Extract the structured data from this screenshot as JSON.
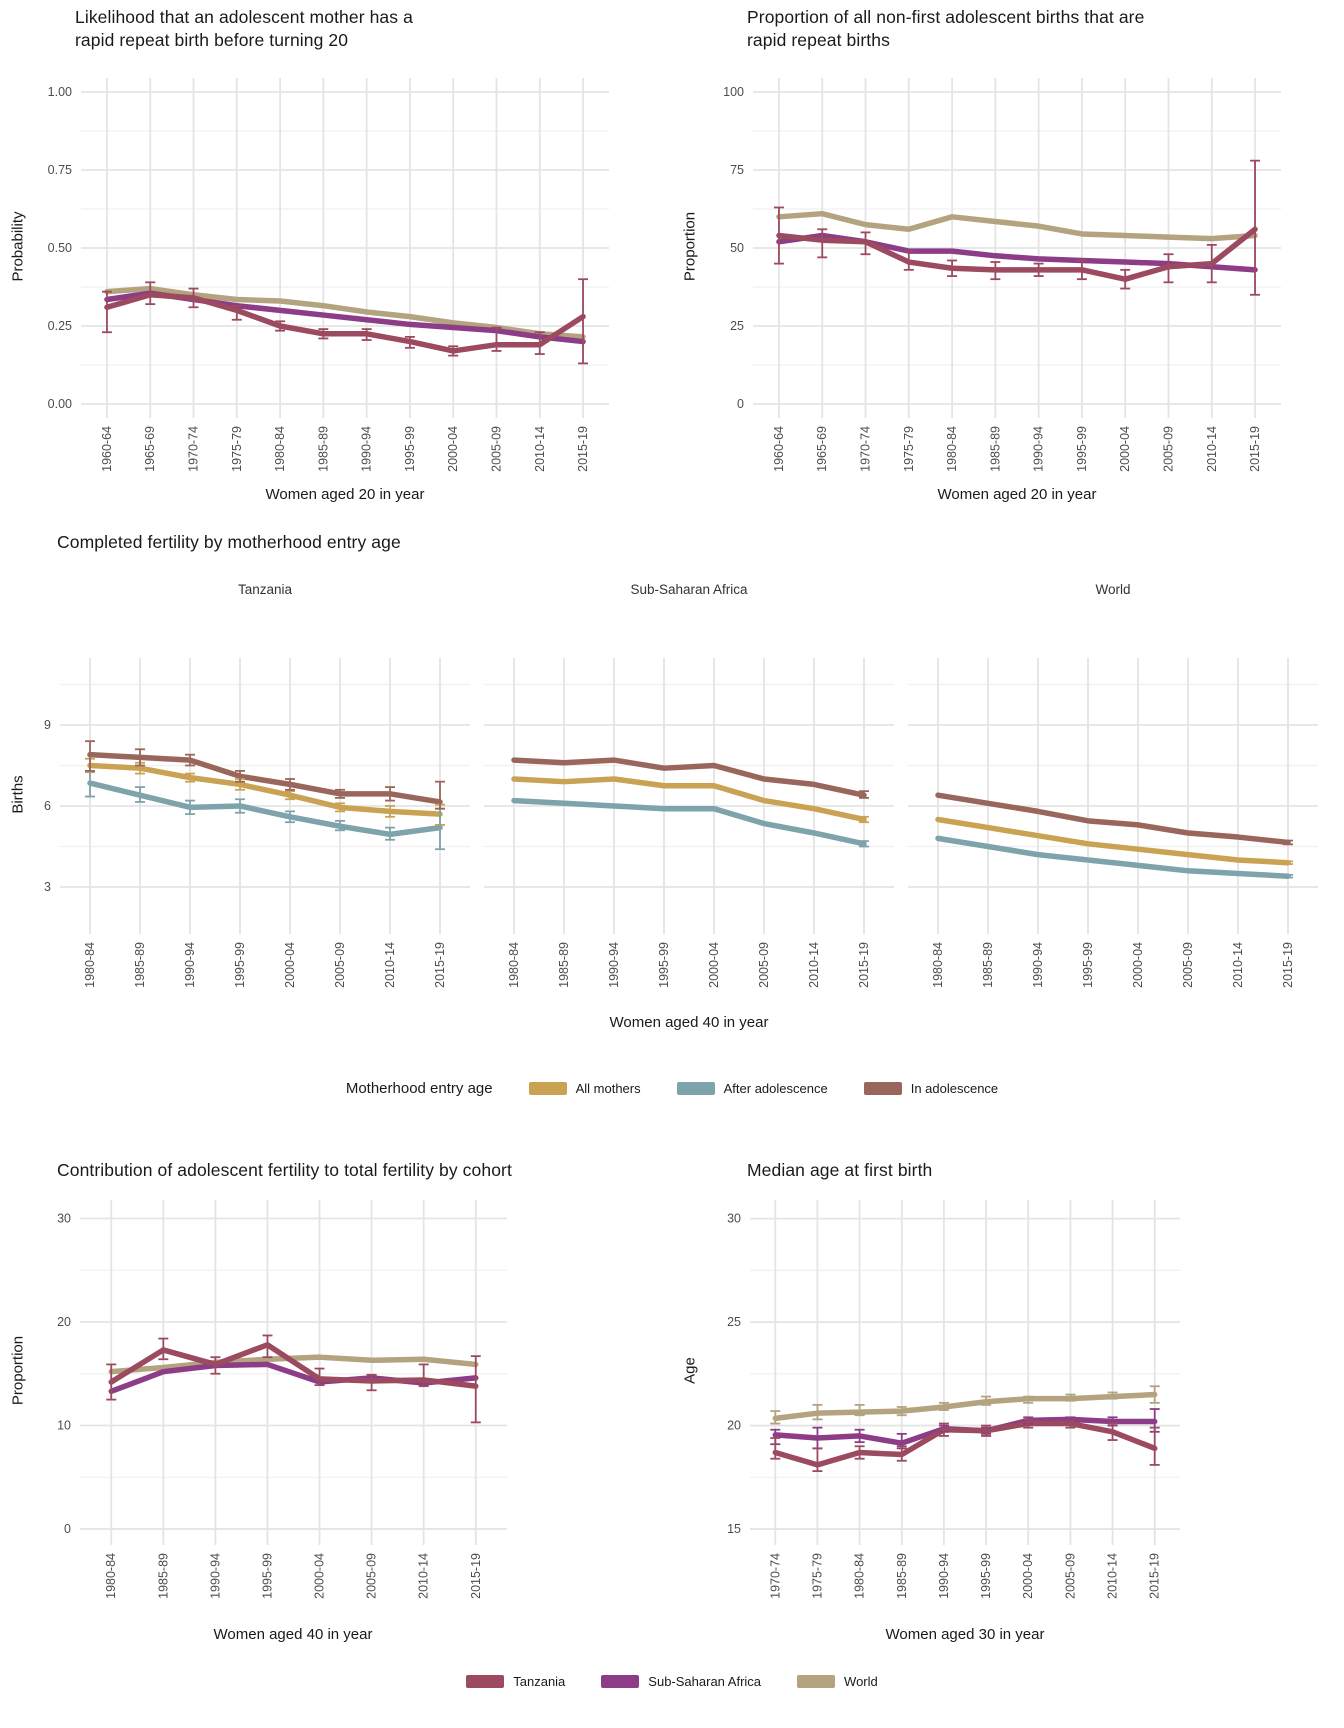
{
  "styles": {
    "background": "#ffffff",
    "grid_major": "#e4e4e4",
    "grid_minor": "#f0f0f0",
    "title_color": "#1a1a1a",
    "tick_label_color": "#4d4d4d",
    "strip_color": "#333333"
  },
  "palette": {
    "tanzania": "#9c4a5f",
    "sub_saharan_africa": "#8d3c87",
    "world": "#b3a37e",
    "all_mothers": "#c9a353",
    "after_adolescence": "#7fa3ab",
    "in_adolescence": "#99665c"
  },
  "legends": {
    "motherhood_entry_age": {
      "title": "Motherhood entry age",
      "items": [
        {
          "label": "All mothers",
          "color": "all_mothers"
        },
        {
          "label": "After adolescence",
          "color": "after_adolescence"
        },
        {
          "label": "In adolescence",
          "color": "in_adolescence"
        }
      ]
    },
    "regions": {
      "title": "",
      "items": [
        {
          "label": "Tanzania",
          "color": "tanzania"
        },
        {
          "label": "Sub-Saharan Africa",
          "color": "sub_saharan_africa"
        },
        {
          "label": "World",
          "color": "world"
        }
      ]
    }
  },
  "chart_data": [
    {
      "id": "rrb-likelihood",
      "type": "line",
      "title": "Likelihood that an adolescent mother has a\nrapid repeat birth before turning 20",
      "xlabel": "Women aged 20 in year",
      "ylabel": "Probability",
      "ylim": [
        -0.045,
        1.045
      ],
      "ytick_values": [
        0,
        0.25,
        0.5,
        0.75,
        1.0
      ],
      "ytick_labels": [
        "0.00",
        "0.25",
        "0.50",
        "0.75",
        "1.00"
      ],
      "yminor": [
        0.125,
        0.375,
        0.625,
        0.875
      ],
      "legend_position": "none",
      "grid": true,
      "categories": [
        "1960-64",
        "1965-69",
        "1970-74",
        "1975-79",
        "1980-84",
        "1985-89",
        "1990-94",
        "1995-99",
        "2000-04",
        "2005-09",
        "2010-14",
        "2015-19"
      ],
      "series": [
        {
          "name": "World",
          "color": "world",
          "values": [
            0.36,
            0.37,
            0.35,
            0.335,
            0.33,
            0.315,
            0.295,
            0.28,
            0.26,
            0.245,
            0.225,
            0.215
          ]
        },
        {
          "name": "Sub-Saharan Africa",
          "color": "sub_saharan_africa",
          "values": [
            0.335,
            0.355,
            0.335,
            0.315,
            0.3,
            0.285,
            0.27,
            0.255,
            0.245,
            0.235,
            0.215,
            0.2
          ]
        },
        {
          "name": "Tanzania",
          "color": "tanzania",
          "values": [
            0.31,
            0.35,
            0.34,
            0.3,
            0.25,
            0.225,
            0.225,
            0.2,
            0.17,
            0.19,
            0.19,
            0.28
          ],
          "err_low": [
            0.23,
            0.32,
            0.31,
            0.27,
            0.235,
            0.21,
            0.205,
            0.18,
            0.155,
            0.17,
            0.16,
            0.13
          ],
          "err_high": [
            0.36,
            0.39,
            0.37,
            0.315,
            0.265,
            0.24,
            0.24,
            0.215,
            0.185,
            0.245,
            0.23,
            0.4
          ]
        }
      ]
    },
    {
      "id": "rrb-proportion",
      "type": "line",
      "title": "Proportion of all non-first adolescent births that are\nrapid repeat births",
      "xlabel": "Women aged 20 in year",
      "ylabel": "Proportion",
      "ylim": [
        -4.5,
        104.5
      ],
      "ytick_values": [
        0,
        25,
        50,
        75,
        100
      ],
      "ytick_labels": [
        "0",
        "25",
        "50",
        "75",
        "100"
      ],
      "yminor": [
        12.5,
        37.5,
        62.5,
        87.5
      ],
      "legend_position": "none",
      "grid": true,
      "categories": [
        "1960-64",
        "1965-69",
        "1970-74",
        "1975-79",
        "1980-84",
        "1985-89",
        "1990-94",
        "1995-99",
        "2000-04",
        "2005-09",
        "2010-14",
        "2015-19"
      ],
      "series": [
        {
          "name": "World",
          "color": "world",
          "values": [
            60,
            61,
            57.5,
            56,
            60,
            58.5,
            57,
            54.5,
            54,
            53.5,
            53,
            54
          ]
        },
        {
          "name": "Sub-Saharan Africa",
          "color": "sub_saharan_africa",
          "values": [
            52,
            54,
            52,
            49,
            49,
            47.5,
            46.5,
            46,
            45.5,
            45,
            44,
            43
          ]
        },
        {
          "name": "Tanzania",
          "color": "tanzania",
          "values": [
            54,
            52.5,
            52,
            45.5,
            43.5,
            43,
            43,
            43,
            40,
            44,
            45,
            56
          ],
          "err_low": [
            45,
            47,
            48,
            43,
            41,
            40,
            41,
            40,
            37,
            39,
            39,
            35
          ],
          "err_high": [
            63,
            56,
            55,
            49,
            46,
            45.5,
            45,
            46,
            43,
            48,
            51,
            78
          ]
        }
      ]
    },
    {
      "id": "completed-fertility",
      "type": "line",
      "title": "Completed fertility by motherhood entry age",
      "xlabel": "Women aged 40 in year",
      "ylabel": "Births",
      "ylim": [
        1.26,
        11.48
      ],
      "ytick_values": [
        3,
        6,
        9
      ],
      "ytick_labels": [
        "3",
        "6",
        "9"
      ],
      "yminor": [
        4.5,
        7.5,
        10.5
      ],
      "legend_position": "bottom",
      "grid": true,
      "categories": [
        "1980-84",
        "1985-89",
        "1990-94",
        "1995-99",
        "2000-04",
        "2005-09",
        "2010-14",
        "2015-19"
      ],
      "facets": [
        {
          "label": "Tanzania",
          "series": [
            {
              "name": "All mothers",
              "color": "all_mothers",
              "values": [
                7.5,
                7.4,
                7.05,
                6.8,
                6.4,
                5.95,
                5.8,
                5.7
              ],
              "err_low": [
                7.25,
                7.2,
                6.9,
                6.6,
                6.25,
                5.8,
                5.6,
                5.3
              ],
              "err_high": [
                7.75,
                7.6,
                7.2,
                7.0,
                6.55,
                6.1,
                6.0,
                6.05
              ]
            },
            {
              "name": "After adolescence",
              "color": "after_adolescence",
              "values": [
                6.85,
                6.4,
                5.95,
                6.0,
                5.6,
                5.25,
                4.95,
                5.2
              ],
              "err_low": [
                6.35,
                6.15,
                5.7,
                5.75,
                5.4,
                5.1,
                4.75,
                4.4
              ],
              "err_high": [
                7.3,
                6.7,
                6.2,
                6.25,
                5.8,
                5.45,
                5.2,
                5.9
              ]
            },
            {
              "name": "In adolescence",
              "color": "in_adolescence",
              "values": [
                7.9,
                7.8,
                7.7,
                7.1,
                6.8,
                6.45,
                6.45,
                6.15
              ],
              "err_low": [
                7.3,
                7.5,
                7.5,
                6.9,
                6.6,
                6.3,
                6.2,
                5.9
              ],
              "err_high": [
                8.4,
                8.1,
                7.9,
                7.3,
                7.0,
                6.6,
                6.7,
                6.9
              ]
            }
          ]
        },
        {
          "label": "Sub-Saharan Africa",
          "series": [
            {
              "name": "All mothers",
              "color": "all_mothers",
              "values": [
                7.0,
                6.9,
                7.0,
                6.75,
                6.75,
                6.2,
                5.9,
                5.5
              ],
              "err_low": [
                null,
                null,
                null,
                null,
                null,
                null,
                null,
                5.4
              ],
              "err_high": [
                null,
                null,
                null,
                null,
                null,
                null,
                null,
                5.6
              ]
            },
            {
              "name": "After adolescence",
              "color": "after_adolescence",
              "values": [
                6.2,
                6.1,
                6.0,
                5.9,
                5.9,
                5.35,
                5.0,
                4.6
              ],
              "err_low": [
                null,
                null,
                null,
                null,
                null,
                null,
                null,
                4.5
              ],
              "err_high": [
                null,
                null,
                null,
                null,
                null,
                null,
                null,
                4.7
              ]
            },
            {
              "name": "In adolescence",
              "color": "in_adolescence",
              "values": [
                7.7,
                7.6,
                7.7,
                7.4,
                7.5,
                7.0,
                6.8,
                6.4
              ],
              "err_low": [
                null,
                null,
                null,
                null,
                null,
                null,
                null,
                6.3
              ],
              "err_high": [
                null,
                null,
                null,
                null,
                null,
                null,
                null,
                6.55
              ]
            }
          ]
        },
        {
          "label": "World",
          "series": [
            {
              "name": "All mothers",
              "color": "all_mothers",
              "values": [
                5.5,
                5.2,
                4.9,
                4.6,
                4.4,
                4.2,
                4.0,
                3.9
              ],
              "err_low": [
                null,
                null,
                null,
                null,
                null,
                null,
                null,
                3.85
              ],
              "err_high": [
                null,
                null,
                null,
                null,
                null,
                null,
                null,
                3.95
              ]
            },
            {
              "name": "After adolescence",
              "color": "after_adolescence",
              "values": [
                4.8,
                4.5,
                4.2,
                4.0,
                3.8,
                3.6,
                3.5,
                3.4
              ],
              "err_low": [
                null,
                null,
                null,
                null,
                null,
                null,
                null,
                3.35
              ],
              "err_high": [
                null,
                null,
                null,
                null,
                null,
                null,
                null,
                3.45
              ]
            },
            {
              "name": "In adolescence",
              "color": "in_adolescence",
              "values": [
                6.4,
                6.1,
                5.8,
                5.45,
                5.3,
                5.0,
                4.85,
                4.65
              ],
              "err_low": [
                null,
                null,
                null,
                null,
                null,
                null,
                null,
                4.58
              ],
              "err_high": [
                null,
                null,
                null,
                null,
                null,
                null,
                null,
                4.72
              ]
            }
          ]
        }
      ]
    },
    {
      "id": "adolescent-contribution",
      "type": "line",
      "title": "Contribution of adolescent fertility to total fertility by cohort",
      "xlabel": "Women aged 40 in year",
      "ylabel": "Proportion",
      "ylim": [
        -1.55,
        31.79
      ],
      "ytick_values": [
        0,
        10,
        20,
        30
      ],
      "ytick_labels": [
        "0",
        "10",
        "20",
        "30"
      ],
      "yminor": [
        5,
        15,
        25
      ],
      "legend_position": "none",
      "grid": true,
      "categories": [
        "1980-84",
        "1985-89",
        "1990-94",
        "1995-99",
        "2000-04",
        "2005-09",
        "2010-14",
        "2015-19"
      ],
      "series": [
        {
          "name": "World",
          "color": "world",
          "values": [
            15.2,
            15.6,
            16.1,
            16.4,
            16.6,
            16.3,
            16.4,
            15.9
          ]
        },
        {
          "name": "Sub-Saharan Africa",
          "color": "sub_saharan_africa",
          "values": [
            13.3,
            15.2,
            15.8,
            15.9,
            14.2,
            14.6,
            14.1,
            14.6
          ]
        },
        {
          "name": "Tanzania",
          "color": "tanzania",
          "values": [
            14.2,
            17.3,
            15.9,
            17.8,
            14.5,
            14.3,
            14.4,
            13.8
          ],
          "err_low": [
            12.5,
            16.4,
            15.0,
            16.6,
            13.9,
            13.4,
            13.8,
            10.3
          ],
          "err_high": [
            15.9,
            18.4,
            16.6,
            18.7,
            15.5,
            14.9,
            15.9,
            16.7
          ]
        }
      ]
    },
    {
      "id": "median-age",
      "type": "line",
      "title": "Median age at first birth",
      "xlabel": "Women aged 30 in year",
      "ylabel": "Age",
      "ylim": [
        14.23,
        30.9
      ],
      "ytick_values": [
        15,
        20,
        25,
        30
      ],
      "ytick_labels": [
        "15",
        "20",
        "25",
        "30"
      ],
      "yminor": [
        17.5,
        22.5,
        27.5
      ],
      "legend_position": "none",
      "grid": true,
      "categories": [
        "1970-74",
        "1975-79",
        "1980-84",
        "1985-89",
        "1990-94",
        "1995-99",
        "2000-04",
        "2005-09",
        "2010-14",
        "2015-19"
      ],
      "series": [
        {
          "name": "World",
          "color": "world",
          "values": [
            20.35,
            20.6,
            20.65,
            20.7,
            20.9,
            21.15,
            21.3,
            21.3,
            21.4,
            21.5
          ],
          "err_low": [
            20.1,
            20.3,
            20.5,
            20.5,
            20.75,
            21.0,
            21.1,
            21.2,
            21.3,
            21.1
          ],
          "err_high": [
            20.7,
            21.0,
            21.0,
            20.9,
            21.1,
            21.4,
            21.4,
            21.5,
            21.6,
            21.9
          ]
        },
        {
          "name": "Sub-Saharan Africa",
          "color": "sub_saharan_africa",
          "values": [
            19.55,
            19.4,
            19.5,
            19.15,
            19.85,
            19.75,
            20.25,
            20.3,
            20.2,
            20.2
          ],
          "err_low": [
            19.1,
            18.9,
            19.2,
            18.9,
            19.7,
            19.6,
            20.1,
            20.2,
            20.0,
            19.7
          ],
          "err_high": [
            19.8,
            19.9,
            19.8,
            19.6,
            20.0,
            19.9,
            20.4,
            20.4,
            20.4,
            20.8
          ]
        },
        {
          "name": "Tanzania",
          "color": "tanzania",
          "values": [
            18.7,
            18.1,
            18.7,
            18.6,
            19.8,
            19.75,
            20.1,
            20.1,
            19.7,
            18.9
          ],
          "err_low": [
            18.4,
            17.8,
            18.4,
            18.3,
            19.5,
            19.5,
            19.9,
            19.9,
            19.3,
            18.1
          ],
          "err_high": [
            19.4,
            18.9,
            19.0,
            19.0,
            20.1,
            20.0,
            20.3,
            20.2,
            20.1,
            19.9
          ]
        }
      ]
    }
  ]
}
